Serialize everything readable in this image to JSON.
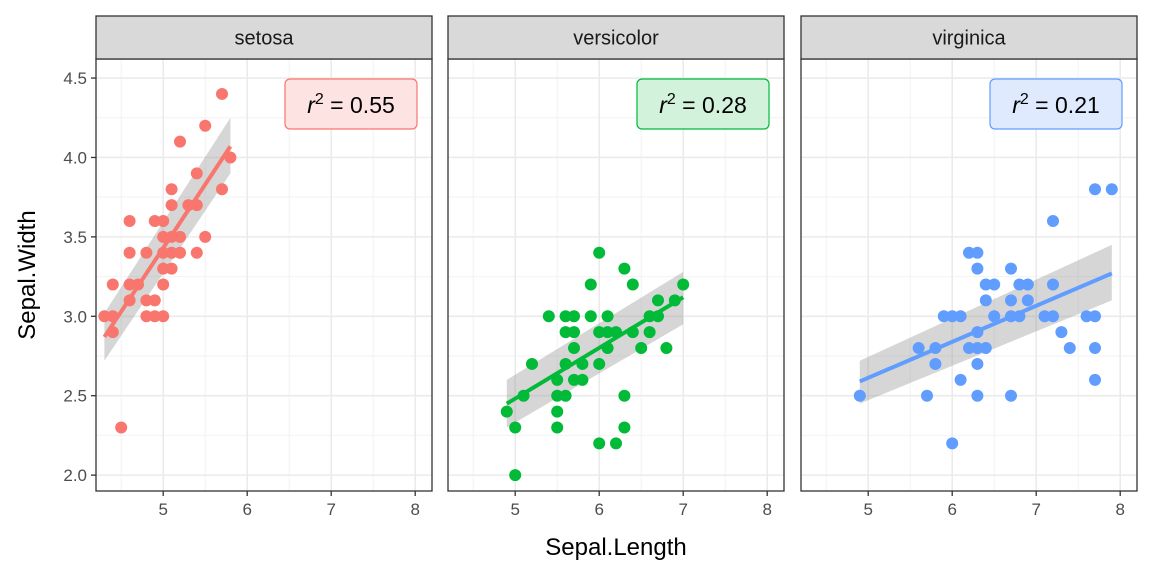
{
  "chart_data": {
    "type": "scatter",
    "xlabel": "Sepal.Length",
    "ylabel": "Sepal.Width",
    "xlim": [
      4.2,
      8.2
    ],
    "ylim": [
      1.9,
      4.62
    ],
    "x_ticks": [
      5,
      6,
      7,
      8
    ],
    "y_ticks": [
      2.0,
      2.5,
      3.0,
      3.5,
      4.0,
      4.5
    ],
    "x_tick_labels": [
      "5",
      "6",
      "7",
      "8"
    ],
    "y_tick_labels": [
      "2.0",
      "2.5",
      "3.0",
      "3.5",
      "4.0",
      "4.5"
    ],
    "grid": true,
    "legend": "none",
    "panels": [
      {
        "name": "setosa",
        "color": "#F8766D",
        "annotation": {
          "prefix": "r",
          "sup": "2",
          "suffix": " = 0.55",
          "fill": "#FDE3E2"
        },
        "fit": {
          "x0": 4.3,
          "y0": 2.87,
          "x1": 5.8,
          "y1": 4.07,
          "band_lo": [
            2.72,
            3.9
          ],
          "band_hi": [
            3.02,
            4.25
          ]
        },
        "points": [
          [
            4.3,
            3.0
          ],
          [
            4.4,
            2.9
          ],
          [
            4.4,
            3.0
          ],
          [
            4.4,
            3.2
          ],
          [
            4.5,
            2.3
          ],
          [
            4.6,
            3.1
          ],
          [
            4.6,
            3.2
          ],
          [
            4.6,
            3.4
          ],
          [
            4.6,
            3.6
          ],
          [
            4.7,
            3.2
          ],
          [
            4.8,
            3.0
          ],
          [
            4.8,
            3.1
          ],
          [
            4.8,
            3.4
          ],
          [
            4.9,
            3.0
          ],
          [
            4.9,
            3.1
          ],
          [
            4.9,
            3.6
          ],
          [
            5.0,
            3.0
          ],
          [
            5.0,
            3.2
          ],
          [
            5.0,
            3.3
          ],
          [
            5.0,
            3.4
          ],
          [
            5.0,
            3.5
          ],
          [
            5.0,
            3.6
          ],
          [
            5.1,
            3.3
          ],
          [
            5.1,
            3.4
          ],
          [
            5.1,
            3.5
          ],
          [
            5.1,
            3.7
          ],
          [
            5.1,
            3.8
          ],
          [
            5.2,
            3.4
          ],
          [
            5.2,
            3.5
          ],
          [
            5.2,
            4.1
          ],
          [
            5.3,
            3.7
          ],
          [
            5.4,
            3.4
          ],
          [
            5.4,
            3.7
          ],
          [
            5.4,
            3.9
          ],
          [
            5.5,
            3.5
          ],
          [
            5.5,
            4.2
          ],
          [
            5.7,
            3.8
          ],
          [
            5.7,
            4.4
          ],
          [
            5.8,
            4.0
          ]
        ]
      },
      {
        "name": "versicolor",
        "color": "#00BA38",
        "annotation": {
          "prefix": "r",
          "sup": "2",
          "suffix": " = 0.28",
          "fill": "#D2F2DB"
        },
        "fit": {
          "x0": 4.9,
          "y0": 2.45,
          "x1": 7.0,
          "y1": 3.12,
          "band_lo": [
            2.3,
            2.95
          ],
          "band_hi": [
            2.6,
            3.28
          ]
        },
        "points": [
          [
            4.9,
            2.4
          ],
          [
            5.0,
            2.0
          ],
          [
            5.0,
            2.3
          ],
          [
            5.1,
            2.5
          ],
          [
            5.2,
            2.7
          ],
          [
            5.4,
            3.0
          ],
          [
            5.5,
            2.3
          ],
          [
            5.5,
            2.4
          ],
          [
            5.5,
            2.5
          ],
          [
            5.5,
            2.6
          ],
          [
            5.6,
            2.5
          ],
          [
            5.6,
            2.7
          ],
          [
            5.6,
            2.9
          ],
          [
            5.6,
            3.0
          ],
          [
            5.7,
            2.6
          ],
          [
            5.7,
            2.8
          ],
          [
            5.7,
            2.9
          ],
          [
            5.7,
            3.0
          ],
          [
            5.8,
            2.6
          ],
          [
            5.8,
            2.7
          ],
          [
            5.9,
            3.0
          ],
          [
            5.9,
            3.2
          ],
          [
            6.0,
            2.2
          ],
          [
            6.0,
            2.7
          ],
          [
            6.0,
            2.9
          ],
          [
            6.0,
            3.4
          ],
          [
            6.1,
            2.8
          ],
          [
            6.1,
            2.9
          ],
          [
            6.1,
            3.0
          ],
          [
            6.2,
            2.2
          ],
          [
            6.2,
            2.9
          ],
          [
            6.3,
            2.3
          ],
          [
            6.3,
            2.5
          ],
          [
            6.3,
            3.3
          ],
          [
            6.4,
            2.9
          ],
          [
            6.4,
            3.2
          ],
          [
            6.5,
            2.8
          ],
          [
            6.6,
            2.9
          ],
          [
            6.6,
            3.0
          ],
          [
            6.7,
            3.0
          ],
          [
            6.7,
            3.1
          ],
          [
            6.8,
            2.8
          ],
          [
            6.9,
            3.1
          ],
          [
            7.0,
            3.2
          ]
        ]
      },
      {
        "name": "virginica",
        "color": "#619CFF",
        "annotation": {
          "prefix": "r",
          "sup": "2",
          "suffix": " = 0.21",
          "fill": "#DFEAFF"
        },
        "fit": {
          "x0": 4.9,
          "y0": 2.59,
          "x1": 7.9,
          "y1": 3.27,
          "band_lo": [
            2.45,
            3.1
          ],
          "band_hi": [
            2.72,
            3.45
          ]
        },
        "points": [
          [
            4.9,
            2.5
          ],
          [
            5.6,
            2.8
          ],
          [
            5.7,
            2.5
          ],
          [
            5.8,
            2.7
          ],
          [
            5.8,
            2.8
          ],
          [
            5.9,
            3.0
          ],
          [
            6.0,
            2.2
          ],
          [
            6.0,
            3.0
          ],
          [
            6.1,
            2.6
          ],
          [
            6.1,
            3.0
          ],
          [
            6.2,
            2.8
          ],
          [
            6.2,
            3.4
          ],
          [
            6.3,
            2.5
          ],
          [
            6.3,
            2.7
          ],
          [
            6.3,
            2.8
          ],
          [
            6.3,
            2.9
          ],
          [
            6.3,
            3.3
          ],
          [
            6.3,
            3.4
          ],
          [
            6.4,
            2.8
          ],
          [
            6.4,
            3.1
          ],
          [
            6.4,
            3.2
          ],
          [
            6.5,
            3.0
          ],
          [
            6.5,
            3.2
          ],
          [
            6.7,
            2.5
          ],
          [
            6.7,
            3.0
          ],
          [
            6.7,
            3.1
          ],
          [
            6.7,
            3.3
          ],
          [
            6.8,
            3.0
          ],
          [
            6.8,
            3.2
          ],
          [
            6.9,
            3.1
          ],
          [
            6.9,
            3.2
          ],
          [
            7.1,
            3.0
          ],
          [
            7.2,
            3.0
          ],
          [
            7.2,
            3.2
          ],
          [
            7.2,
            3.6
          ],
          [
            7.3,
            2.9
          ],
          [
            7.4,
            2.8
          ],
          [
            7.6,
            3.0
          ],
          [
            7.7,
            2.6
          ],
          [
            7.7,
            2.8
          ],
          [
            7.7,
            3.0
          ],
          [
            7.7,
            3.8
          ],
          [
            7.9,
            3.8
          ]
        ]
      }
    ]
  }
}
